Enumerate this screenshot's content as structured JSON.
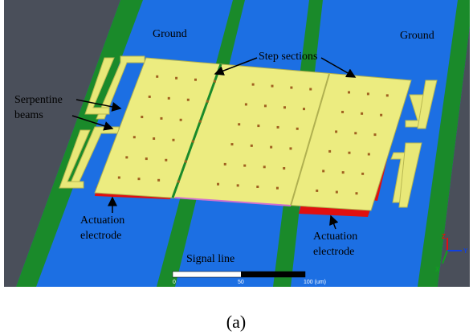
{
  "labels": {
    "ground_left": "Ground",
    "ground_right": "Ground",
    "step_sections": "Step sections",
    "serpentine": [
      "Serpentine",
      "beams"
    ],
    "actuation_left": [
      "Actuation",
      "electrode"
    ],
    "actuation_right": [
      "Actuation",
      "electrode"
    ],
    "signal_line": "Signal line"
  },
  "scale_bar": {
    "ticks": [
      "0",
      "50",
      "100 (um)"
    ]
  },
  "axes": {
    "z": "Z",
    "y": "Y",
    "x": "X"
  },
  "caption": "(a)"
}
